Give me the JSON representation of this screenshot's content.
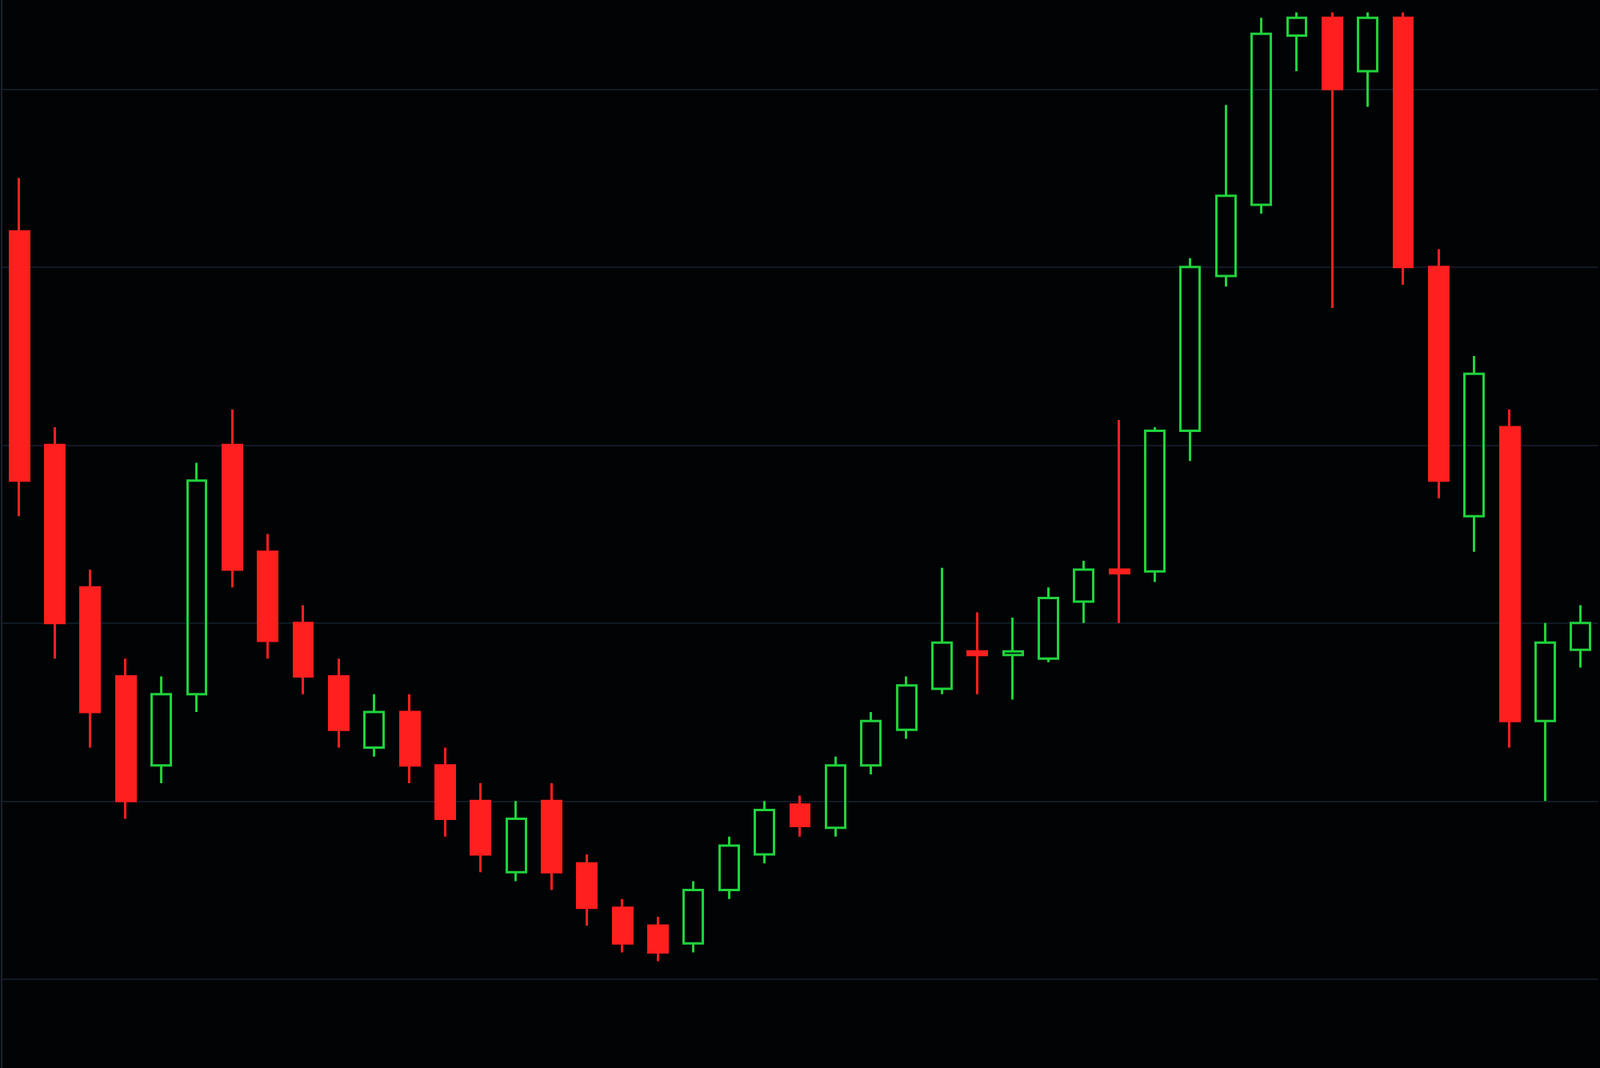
{
  "chart_data": {
    "type": "candlestick",
    "categories": [
      null,
      null,
      null,
      null,
      null,
      null,
      null,
      null,
      null,
      null,
      null,
      null,
      null,
      null,
      null,
      null,
      null,
      null,
      null,
      null,
      null,
      null,
      null,
      null,
      null,
      null,
      null,
      null,
      null,
      null,
      null,
      null,
      null,
      null,
      null,
      null,
      null,
      null,
      null,
      null,
      null,
      null,
      null,
      null,
      null
    ],
    "open": [
      52,
      40,
      32,
      27,
      22,
      26,
      40,
      34,
      30,
      27,
      23,
      25,
      22,
      20,
      16,
      20,
      16.5,
      14,
      13,
      12,
      15,
      17,
      19.8,
      18.5,
      22,
      24,
      26.3,
      28.4,
      28.2,
      28,
      31.2,
      33,
      32.9,
      40.8,
      49.5,
      53.5,
      63,
      64,
      61,
      64,
      50,
      36,
      41,
      24.5,
      28.5
    ],
    "close": [
      38,
      30,
      25,
      20,
      26,
      38,
      33,
      29,
      27,
      24,
      25,
      22,
      19,
      17,
      19,
      16,
      14,
      12,
      11.5,
      15,
      17.5,
      19.5,
      18.6,
      22,
      24.5,
      26.5,
      28.9,
      28.2,
      28.4,
      31.4,
      33,
      32.8,
      40.8,
      50,
      54,
      63.1,
      64,
      60,
      64,
      50,
      38,
      44,
      24.5,
      28.9,
      30
    ],
    "low": [
      36,
      28,
      23,
      19,
      21,
      25,
      32,
      28,
      26,
      23,
      22.5,
      21,
      18,
      16,
      15.5,
      15,
      13,
      11.5,
      11,
      11.5,
      14.5,
      16.5,
      18,
      18,
      21.5,
      23.5,
      26,
      26,
      25.7,
      27.8,
      30,
      30,
      32.3,
      39.1,
      48.9,
      53,
      61,
      47.7,
      59,
      49,
      37,
      34,
      23,
      20,
      27.5
    ],
    "high": [
      55,
      41,
      33,
      28,
      27,
      39,
      42,
      35,
      31,
      28,
      26,
      26,
      23,
      21,
      20,
      21,
      17,
      14.5,
      13.5,
      15.5,
      18,
      20,
      20.3,
      22.5,
      25,
      27,
      33.1,
      30.6,
      30.3,
      32,
      33.5,
      41.4,
      41,
      50.5,
      59.1,
      64,
      64.3,
      64.3,
      64.3,
      64.3,
      51,
      45,
      42,
      30,
      31
    ],
    "colors": [
      "#ff1f1f",
      "#ff1f1f",
      "#ff1f1f",
      "#ff1f1f",
      "#1fd23c",
      "#1fd23c",
      "#ff1f1f",
      "#ff1f1f",
      "#ff1f1f",
      "#ff1f1f",
      "#1fd23c",
      "#ff1f1f",
      "#ff1f1f",
      "#ff1f1f",
      "#1fd23c",
      "#ff1f1f",
      "#ff1f1f",
      "#ff1f1f",
      "#ff1f1f",
      "#1fd23c",
      "#1fd23c",
      "#1fd23c",
      "#ff1f1f",
      "#1fd23c",
      "#1fd23c",
      "#1fd23c",
      "#1fd23c",
      "#ff1f1f",
      "#1fd23c",
      "#1fd23c",
      "#1fd23c",
      "#ff1f1f",
      "#1fd23c",
      "#1fd23c",
      "#1fd23c",
      "#1fd23c",
      "#1fd23c",
      "#ff1f1f",
      "#1fd23c",
      "#ff1f1f",
      "#ff1f1f",
      "#1fd23c",
      "#ff1f1f",
      "#1fd23c",
      "#1fd23c"
    ],
    "ylim": [
      5,
      65
    ],
    "yticks": [
      10,
      20,
      30,
      40,
      50,
      60
    ],
    "grid": true,
    "tick_labels": false
  }
}
